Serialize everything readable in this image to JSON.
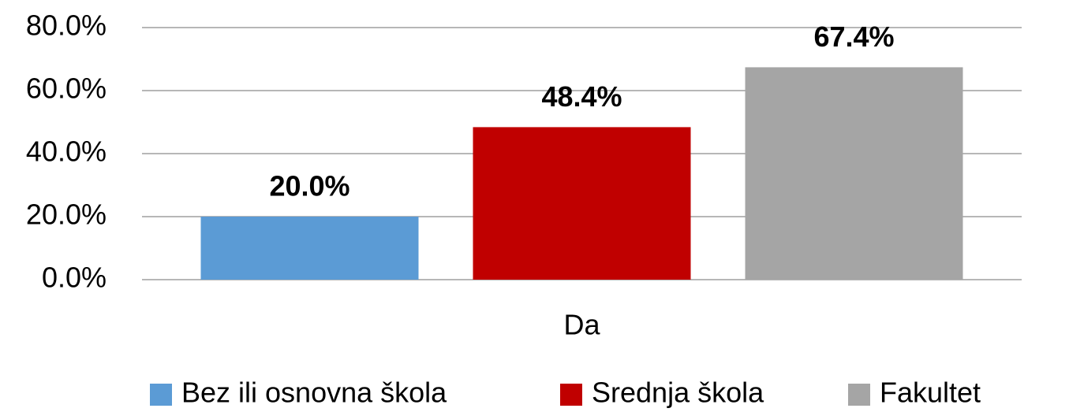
{
  "chart_data": {
    "type": "bar",
    "categories": [
      "Da"
    ],
    "series": [
      {
        "name": "Bez ili osnovna škola",
        "color": "#5b9bd5",
        "values": [
          20.0
        ],
        "value_labels": [
          "20.0%"
        ]
      },
      {
        "name": "Srednja škola",
        "color": "#c00000",
        "values": [
          48.4
        ],
        "value_labels": [
          "48.4%"
        ]
      },
      {
        "name": "Fakultet",
        "color": "#a5a5a5",
        "values": [
          67.4
        ],
        "value_labels": [
          "67.4%"
        ]
      }
    ],
    "ylim": [
      0,
      80
    ],
    "yticks": [
      {
        "value": 0,
        "label": "0.0%"
      },
      {
        "value": 20,
        "label": "20.0%"
      },
      {
        "value": 40,
        "label": "40.0%"
      },
      {
        "value": 60,
        "label": "60.0%"
      },
      {
        "value": 80,
        "label": "80.0%"
      }
    ],
    "grid": true,
    "legend": "bottom"
  }
}
